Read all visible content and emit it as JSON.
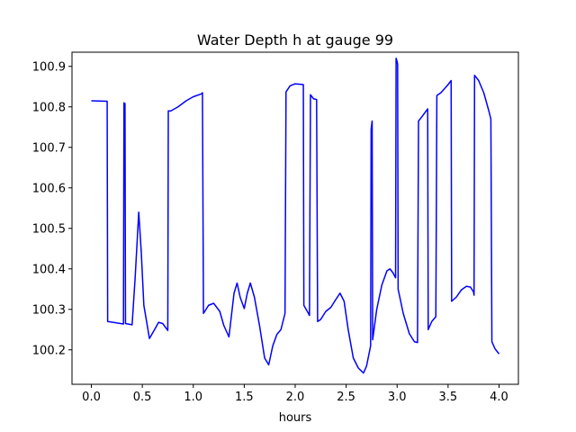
{
  "chart_data": {
    "type": "line",
    "title": "Water Depth h at gauge 99",
    "xlabel": "hours",
    "ylabel": "",
    "xlim": [
      -0.19,
      4.19
    ],
    "ylim": [
      100.115,
      100.935
    ],
    "xticks": [
      0.0,
      0.5,
      1.0,
      1.5,
      2.0,
      2.5,
      3.0,
      3.5,
      4.0
    ],
    "xtick_labels": [
      "0.0",
      "0.5",
      "1.0",
      "1.5",
      "2.0",
      "2.5",
      "3.0",
      "3.5",
      "4.0"
    ],
    "yticks": [
      100.2,
      100.3,
      100.4,
      100.5,
      100.6,
      100.7,
      100.8,
      100.9
    ],
    "ytick_labels": [
      "100.2",
      "100.3",
      "100.4",
      "100.5",
      "100.6",
      "100.7",
      "100.8",
      "100.9"
    ],
    "grid": false,
    "series": [
      {
        "color": "#0000ff",
        "points": [
          [
            0.0,
            100.815
          ],
          [
            0.155,
            100.814
          ],
          [
            0.16,
            100.27
          ],
          [
            0.315,
            100.264
          ],
          [
            0.32,
            100.81
          ],
          [
            0.33,
            100.808
          ],
          [
            0.335,
            100.265
          ],
          [
            0.4,
            100.262
          ],
          [
            0.43,
            100.38
          ],
          [
            0.465,
            100.54
          ],
          [
            0.49,
            100.44
          ],
          [
            0.515,
            100.31
          ],
          [
            0.57,
            100.228
          ],
          [
            0.62,
            100.25
          ],
          [
            0.66,
            100.268
          ],
          [
            0.7,
            100.265
          ],
          [
            0.75,
            100.248
          ],
          [
            0.755,
            100.79
          ],
          [
            0.78,
            100.79
          ],
          [
            0.85,
            100.8
          ],
          [
            0.93,
            100.815
          ],
          [
            1.0,
            100.825
          ],
          [
            1.08,
            100.832
          ],
          [
            1.09,
            100.835
          ],
          [
            1.1,
            100.29
          ],
          [
            1.15,
            100.31
          ],
          [
            1.2,
            100.315
          ],
          [
            1.26,
            100.295
          ],
          [
            1.3,
            100.26
          ],
          [
            1.35,
            100.232
          ],
          [
            1.4,
            100.34
          ],
          [
            1.43,
            100.365
          ],
          [
            1.46,
            100.33
          ],
          [
            1.5,
            100.302
          ],
          [
            1.53,
            100.34
          ],
          [
            1.56,
            100.365
          ],
          [
            1.6,
            100.33
          ],
          [
            1.65,
            100.26
          ],
          [
            1.7,
            100.18
          ],
          [
            1.74,
            100.163
          ],
          [
            1.78,
            100.21
          ],
          [
            1.82,
            100.238
          ],
          [
            1.86,
            100.25
          ],
          [
            1.9,
            100.29
          ],
          [
            1.91,
            100.837
          ],
          [
            1.95,
            100.852
          ],
          [
            2.0,
            100.857
          ],
          [
            2.08,
            100.855
          ],
          [
            2.085,
            100.31
          ],
          [
            2.13,
            100.29
          ],
          [
            2.14,
            100.285
          ],
          [
            2.15,
            100.83
          ],
          [
            2.18,
            100.82
          ],
          [
            2.21,
            100.818
          ],
          [
            2.22,
            100.27
          ],
          [
            2.25,
            100.275
          ],
          [
            2.3,
            100.295
          ],
          [
            2.35,
            100.305
          ],
          [
            2.4,
            100.325
          ],
          [
            2.44,
            100.34
          ],
          [
            2.48,
            100.32
          ],
          [
            2.52,
            100.25
          ],
          [
            2.57,
            100.18
          ],
          [
            2.62,
            100.155
          ],
          [
            2.67,
            100.143
          ],
          [
            2.7,
            100.16
          ],
          [
            2.74,
            100.21
          ],
          [
            2.745,
            100.745
          ],
          [
            2.755,
            100.765
          ],
          [
            2.76,
            100.225
          ],
          [
            2.8,
            100.3
          ],
          [
            2.85,
            100.36
          ],
          [
            2.9,
            100.395
          ],
          [
            2.93,
            100.4
          ],
          [
            2.96,
            100.39
          ],
          [
            2.985,
            100.378
          ],
          [
            2.99,
            100.92
          ],
          [
            3.0,
            100.912
          ],
          [
            3.005,
            100.905
          ],
          [
            3.01,
            100.35
          ],
          [
            3.06,
            100.29
          ],
          [
            3.12,
            100.24
          ],
          [
            3.17,
            100.22
          ],
          [
            3.2,
            100.218
          ],
          [
            3.21,
            100.765
          ],
          [
            3.25,
            100.778
          ],
          [
            3.3,
            100.795
          ],
          [
            3.305,
            100.25
          ],
          [
            3.34,
            100.27
          ],
          [
            3.38,
            100.282
          ],
          [
            3.39,
            100.828
          ],
          [
            3.43,
            100.835
          ],
          [
            3.5,
            100.855
          ],
          [
            3.53,
            100.865
          ],
          [
            3.535,
            100.32
          ],
          [
            3.58,
            100.33
          ],
          [
            3.63,
            100.348
          ],
          [
            3.68,
            100.357
          ],
          [
            3.72,
            100.355
          ],
          [
            3.75,
            100.343
          ],
          [
            3.755,
            100.335
          ],
          [
            3.76,
            100.878
          ],
          [
            3.8,
            100.865
          ],
          [
            3.85,
            100.835
          ],
          [
            3.9,
            100.79
          ],
          [
            3.92,
            100.77
          ],
          [
            3.93,
            100.22
          ],
          [
            3.96,
            100.203
          ],
          [
            4.0,
            100.19
          ]
        ]
      }
    ]
  }
}
